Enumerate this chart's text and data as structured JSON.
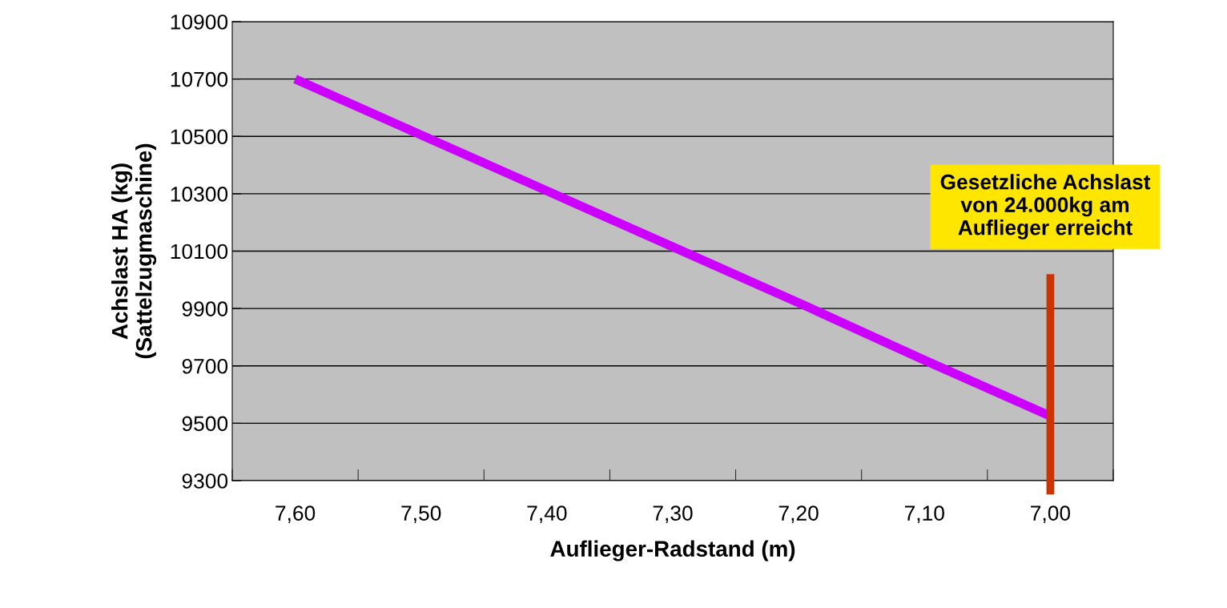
{
  "chart_data": {
    "type": "line",
    "xlabel": "Auflieger-Radstand (m)",
    "ylabel": "Achslast HA (kg)\n(Sattelzugmaschine)",
    "categories": [
      "7,60",
      "7,50",
      "7,40",
      "7,30",
      "7,20",
      "7,10",
      "7,00"
    ],
    "series": [
      {
        "color": "#cc00ff",
        "values": [
          10700,
          10505,
          10310,
          10115,
          9920,
          9720,
          9525
        ]
      }
    ],
    "ylim": [
      9300,
      10900
    ],
    "yticks": [
      9300,
      9500,
      9700,
      9900,
      10100,
      10300,
      10500,
      10700,
      10900
    ],
    "grid": "y",
    "marker": "none",
    "line_style": "solid",
    "ref_lines": [
      {
        "axis": "x",
        "value": "7,00",
        "color": "#cc3300"
      }
    ],
    "annotations": [
      "Gesetzliche Achslast\nvon 24.000kg am\nAuflieger erreicht"
    ]
  }
}
